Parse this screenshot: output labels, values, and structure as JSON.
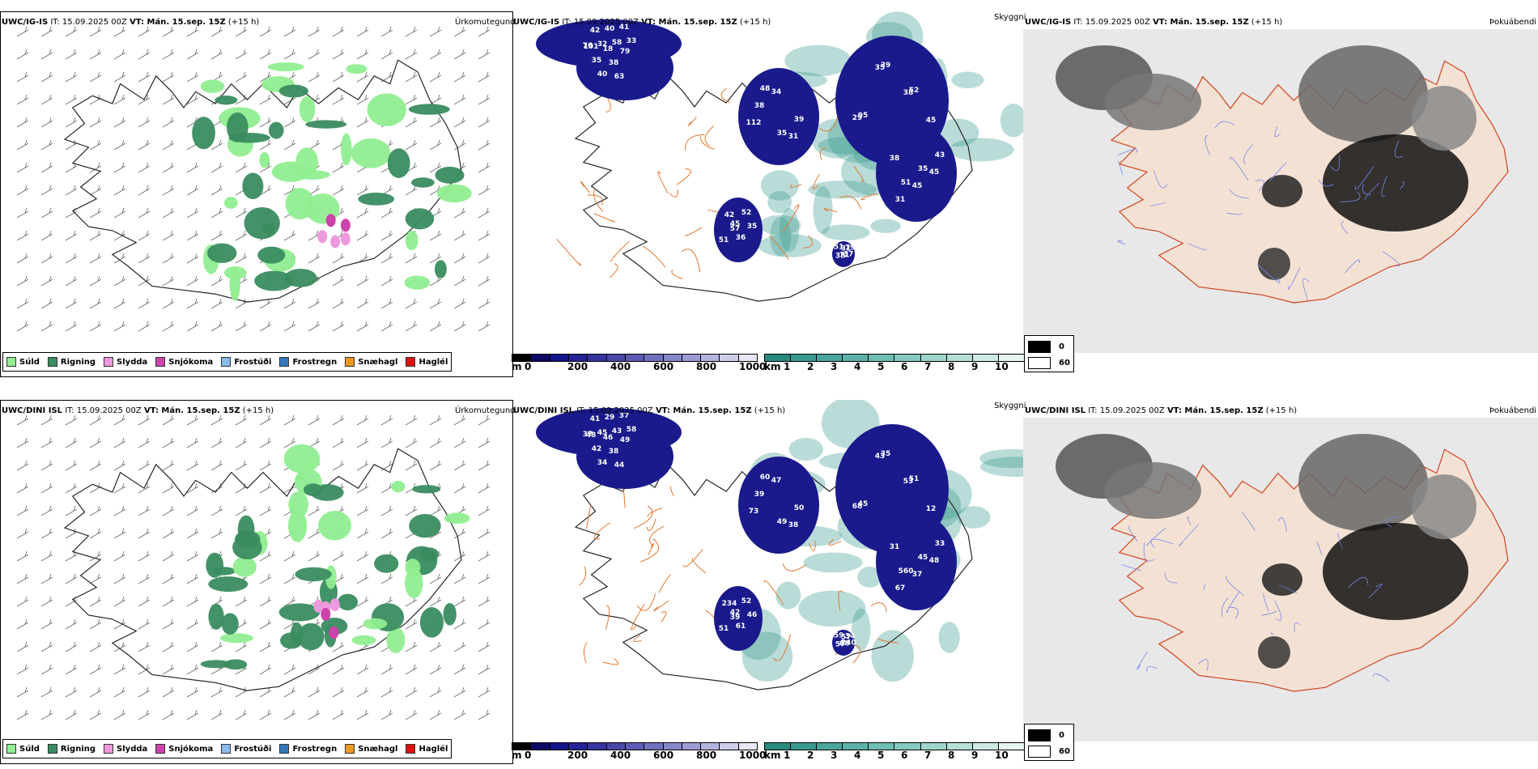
{
  "colors": {
    "suld": "#90ee90",
    "rigning": "#3a8c5f",
    "slydda": "#ee99dd",
    "snjokoma": "#cc44aa",
    "frostudi": "#88bbee",
    "frostregn": "#3377bb",
    "snaehagl": "#ee9922",
    "haglel": "#dd1111",
    "cloudbase": "#1a1a8c",
    "visibility": "#3a9a90",
    "land": "#f3e2d3",
    "roads": "#e07830"
  },
  "rows": [
    {
      "model": "UWC/IG-IS",
      "it_label": "IT:",
      "it_value": "15.09.2025 00Z",
      "vt_label": "VT: Mán. 15.sep. 15Z",
      "lead": "(+15 h)",
      "precip_label": "Úrkomutegund",
      "vis_label": "Skyggni",
      "fog_label": "Þokuábendi",
      "cloud_numbers": [
        "101",
        "76",
        "112",
        "95",
        "38",
        "45",
        "31",
        "35",
        "42",
        "31",
        "52",
        "45",
        "36",
        "38",
        "40",
        "32",
        "34",
        "39",
        "45",
        "52",
        "79",
        "18",
        "40",
        "38",
        "29",
        "31",
        "35",
        "71",
        "38",
        "58",
        "39",
        "38",
        "43",
        "51",
        "51",
        "63",
        "41",
        "35",
        "35",
        "35",
        "42",
        "37",
        "79",
        "33",
        "48",
        "45",
        "51",
        "57"
      ]
    },
    {
      "model": "UWC/DINI ISL",
      "it_label": "IT:",
      "it_value": "15.09.2025 00Z",
      "vt_label": "VT: Mán. 15.sep. 15Z",
      "lead": "(+15 h)",
      "precip_label": "Úrkomutegund",
      "vis_label": "Skyggni",
      "fog_label": "Þokuábendi",
      "cloud_numbers": [
        "48",
        "37",
        "73",
        "45",
        "31",
        "42",
        "57",
        "42",
        "41",
        "38",
        "51",
        "48",
        "61",
        "57",
        "34",
        "45",
        "47",
        "35",
        "37",
        "52",
        "34",
        "46",
        "29",
        "39",
        "68",
        "67",
        "46",
        "68",
        "38",
        "43",
        "50",
        "53",
        "33",
        "51",
        "59",
        "44",
        "37",
        "49",
        "43",
        "45",
        "234",
        "240",
        "49",
        "58",
        "60",
        "12",
        "560",
        "39"
      ]
    }
  ],
  "precip_legend": [
    {
      "label": "Súld",
      "color": "#90ee90"
    },
    {
      "label": "Rigning",
      "color": "#3a8c5f"
    },
    {
      "label": "Slydda",
      "color": "#ee99dd"
    },
    {
      "label": "Snjókoma",
      "color": "#cc44aa"
    },
    {
      "label": "Frostúði",
      "color": "#88bbee"
    },
    {
      "label": "Frostregn",
      "color": "#3377bb"
    },
    {
      "label": "Snæhagl",
      "color": "#ee9922"
    },
    {
      "label": "Haglél",
      "color": "#dd1111"
    }
  ],
  "cloudbase_scale": {
    "unit": "m",
    "ticks": [
      "0",
      "200",
      "400",
      "600",
      "800",
      "1000"
    ],
    "colors": [
      "#000000",
      "#0a0a66",
      "#15158a",
      "#242496",
      "#3535a0",
      "#4848aa",
      "#5c5cb4",
      "#7070bf",
      "#8686ca",
      "#9c9cd5",
      "#b4b4e0",
      "#cdcdeb",
      "#e6e6f5"
    ]
  },
  "visibility_scale": {
    "unit": "km",
    "ticks": [
      "1",
      "2",
      "3",
      "4",
      "5",
      "6",
      "7",
      "8",
      "9",
      "10"
    ],
    "colors": [
      "#2a8a80",
      "#3a9a90",
      "#4aa69c",
      "#5cb2a8",
      "#70beb4",
      "#86c9c0",
      "#9ed4cc",
      "#b6dfd8",
      "#ceeae5",
      "#e6f4f2"
    ]
  },
  "fog_scale": {
    "min_label": "0",
    "max_label": "60"
  }
}
